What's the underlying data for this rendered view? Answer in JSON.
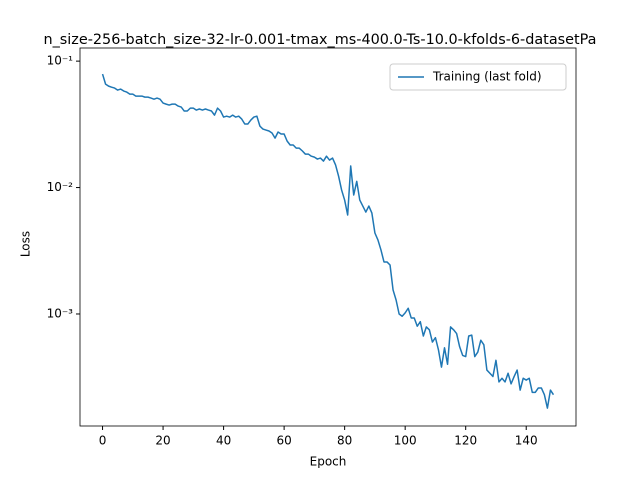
{
  "chart_data": {
    "type": "line",
    "title": "n_size-256-batch_size-32-lr-0.001-tmax_ms-400.0-Ts-10.0-kfolds-6-datasetPa",
    "x_label": "Epoch",
    "y_label": "Loss",
    "x": [
      0,
      1,
      2,
      3,
      4,
      5,
      6,
      7,
      8,
      9,
      10,
      11,
      12,
      13,
      14,
      15,
      16,
      17,
      18,
      19,
      20,
      21,
      22,
      23,
      24,
      25,
      26,
      27,
      28,
      29,
      30,
      31,
      32,
      33,
      34,
      35,
      36,
      37,
      38,
      39,
      40,
      41,
      42,
      43,
      44,
      45,
      46,
      47,
      48,
      49,
      50,
      51,
      52,
      53,
      54,
      55,
      56,
      57,
      58,
      59,
      60,
      61,
      62,
      63,
      64,
      65,
      66,
      67,
      68,
      69,
      70,
      71,
      72,
      73,
      74,
      75,
      76,
      77,
      78,
      79,
      80,
      81,
      82,
      83,
      84,
      85,
      86,
      87,
      88,
      89,
      90,
      91,
      92,
      93,
      94,
      95,
      96,
      97,
      98,
      99,
      100,
      101,
      102,
      103,
      104,
      105,
      106,
      107,
      108,
      109,
      110,
      111,
      112,
      113,
      114,
      115,
      116,
      117,
      118,
      119,
      120,
      121,
      122,
      123,
      124,
      125,
      126,
      127,
      128,
      129,
      130,
      131,
      132,
      133,
      134,
      135,
      136,
      137,
      138,
      139,
      140,
      141,
      142,
      143,
      144,
      145,
      146,
      147,
      148,
      149
    ],
    "series": [
      {
        "name": "Training (last fold)",
        "color": "#1f77b4",
        "values": [
          0.079,
          0.0658,
          0.0634,
          0.0622,
          0.0612,
          0.059,
          0.0601,
          0.058,
          0.0569,
          0.0548,
          0.0548,
          0.0529,
          0.0529,
          0.0529,
          0.0519,
          0.0519,
          0.051,
          0.05,
          0.051,
          0.05,
          0.0466,
          0.0457,
          0.0449,
          0.0457,
          0.0457,
          0.0441,
          0.0433,
          0.0403,
          0.0403,
          0.0425,
          0.0425,
          0.041,
          0.0418,
          0.041,
          0.0418,
          0.041,
          0.0403,
          0.0374,
          0.0425,
          0.0403,
          0.0361,
          0.0367,
          0.0361,
          0.0374,
          0.0361,
          0.0367,
          0.0348,
          0.0318,
          0.0318,
          0.0342,
          0.0361,
          0.0367,
          0.0306,
          0.029,
          0.0285,
          0.028,
          0.027,
          0.0246,
          0.0275,
          0.0265,
          0.0265,
          0.0233,
          0.0217,
          0.0217,
          0.0205,
          0.0205,
          0.0195,
          0.0184,
          0.0184,
          0.0177,
          0.0174,
          0.0168,
          0.0171,
          0.0162,
          0.0177,
          0.0165,
          0.0171,
          0.0151,
          0.0123,
          0.00955,
          0.00796,
          0.00607,
          0.0148,
          0.00873,
          0.0112,
          0.00796,
          0.00714,
          0.0064,
          0.00714,
          0.00628,
          0.00437,
          0.00385,
          0.00321,
          0.00258,
          0.00258,
          0.00244,
          0.00155,
          0.00129,
          0.001,
          0.00096,
          0.00102,
          0.00111,
          0.00093,
          0.00093,
          0.0008,
          0.00087,
          0.00067,
          0.00079,
          0.00075,
          0.0006,
          0.00065,
          0.00052,
          0.00038,
          0.00054,
          0.0004,
          0.00079,
          0.00075,
          0.0007,
          0.00055,
          0.00047,
          0.00046,
          0.00067,
          0.00068,
          0.00046,
          0.0005,
          0.00062,
          0.00057,
          0.00036,
          0.00034,
          0.00032,
          0.00043,
          0.00029,
          0.00031,
          0.00029,
          0.00034,
          0.00028,
          0.00032,
          0.00036,
          0.00025,
          0.00031,
          0.0003,
          0.00031,
          0.00024,
          0.00024,
          0.00026,
          0.00026,
          0.00023,
          0.00018,
          0.00025,
          0.00023
        ]
      }
    ],
    "xlim": [
      -7.45,
      156.45
    ],
    "xticks": [
      0,
      20,
      40,
      60,
      80,
      100,
      120,
      140
    ],
    "ylim": [
      0.00013,
      0.127
    ],
    "log_y": true,
    "yticks": [
      {
        "value": 0.001,
        "label": "10⁻³"
      },
      {
        "value": 0.01,
        "label": "10⁻²"
      },
      {
        "value": 0.1,
        "label": "10⁻¹"
      }
    ],
    "legend": "upper right"
  }
}
